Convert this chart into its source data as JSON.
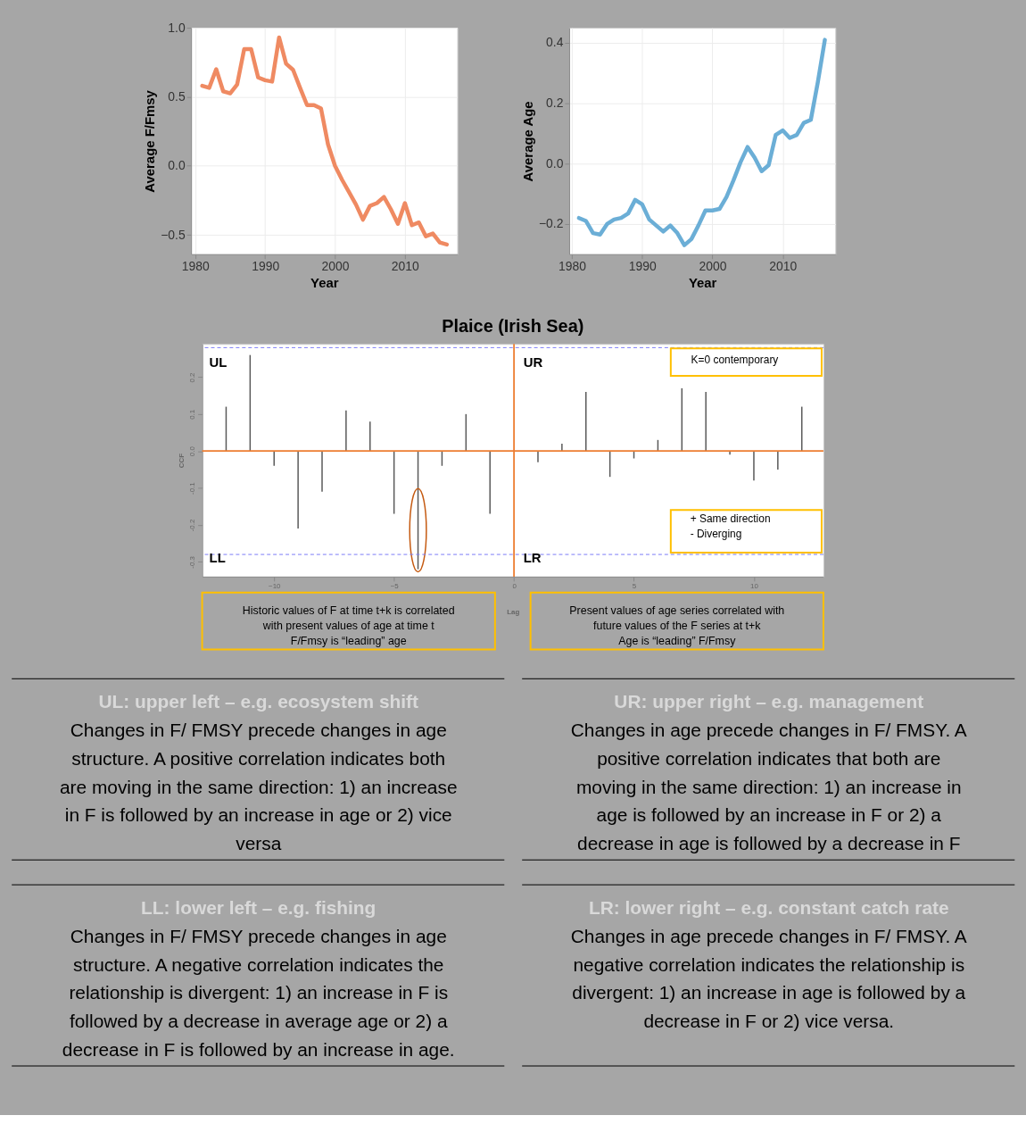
{
  "chart_data": [
    {
      "type": "line",
      "xlabel": "Year",
      "ylabel": "Average F/Fmsy",
      "grid": true,
      "line_style": "solid",
      "marker": "none",
      "xlim": [
        1979.4,
        2017.5
      ],
      "xticks": [
        1980,
        1990,
        2000,
        2010
      ],
      "ylim": [
        -0.64,
        1.0
      ],
      "yticks": [
        {
          "value": -0.5,
          "label": "−0.5"
        },
        {
          "value": 0,
          "label": "0.0"
        },
        0.5,
        {
          "value": 1.0,
          "label": "1.0"
        }
      ],
      "series": [
        {
          "color": "#ef8a62",
          "x": [
            1981,
            1982,
            1983,
            1984,
            1985,
            1986,
            1987,
            1988,
            1989,
            1990,
            1991,
            1992,
            1993,
            1994,
            1995,
            1996,
            1997,
            1998,
            1999,
            2000,
            2001,
            2002,
            2003,
            2004,
            2005,
            2006,
            2007,
            2008,
            2009,
            2010,
            2011,
            2012,
            2013,
            2014,
            2015,
            2016
          ],
          "values": [
            0.58,
            0.565,
            0.7,
            0.54,
            0.525,
            0.59,
            0.845,
            0.845,
            0.64,
            0.62,
            0.61,
            0.93,
            0.74,
            0.695,
            0.565,
            0.44,
            0.44,
            0.415,
            0.155,
            0.0,
            -0.1,
            -0.19,
            -0.28,
            -0.39,
            -0.29,
            -0.27,
            -0.225,
            -0.315,
            -0.42,
            -0.27,
            -0.43,
            -0.41,
            -0.51,
            -0.49,
            -0.555,
            -0.57
          ]
        }
      ]
    },
    {
      "type": "line",
      "xlabel": "Year",
      "ylabel": "Average Age",
      "grid": true,
      "line_style": "solid",
      "marker": "none",
      "xlim": [
        1979.6,
        2017.5
      ],
      "xticks": [
        1980,
        1990,
        2000,
        2010
      ],
      "ylim": [
        -0.3,
        0.45
      ],
      "yticks": [
        {
          "value": -0.2,
          "label": "−0.2"
        },
        {
          "value": 0,
          "label": "0.0"
        },
        0.2,
        0.4
      ],
      "series": [
        {
          "color": "#6baed6",
          "x": [
            1981,
            1982,
            1983,
            1984,
            1985,
            1986,
            1987,
            1988,
            1989,
            1990,
            1991,
            1992,
            1993,
            1994,
            1995,
            1996,
            1997,
            1998,
            1999,
            2000,
            2001,
            2002,
            2003,
            2004,
            2005,
            2006,
            2007,
            2008,
            2009,
            2010,
            2011,
            2012,
            2013,
            2014,
            2015,
            2016
          ],
          "values": [
            -0.18,
            -0.19,
            -0.23,
            -0.235,
            -0.2,
            -0.185,
            -0.18,
            -0.165,
            -0.12,
            -0.135,
            -0.185,
            -0.205,
            -0.225,
            -0.205,
            -0.23,
            -0.27,
            -0.25,
            -0.205,
            -0.155,
            -0.155,
            -0.15,
            -0.11,
            -0.055,
            0.005,
            0.055,
            0.02,
            -0.025,
            -0.005,
            0.095,
            0.11,
            0.085,
            0.095,
            0.135,
            0.145,
            0.27,
            0.41
          ]
        }
      ]
    },
    {
      "type": "bar",
      "title": "Plaice (Irish Sea)",
      "xlabel": "Lag",
      "ylabel": "CCF",
      "xlim": [
        -13,
        12.9
      ],
      "xticks": [
        -10,
        -5,
        0,
        5,
        10
      ],
      "ylim": [
        -0.34,
        0.29
      ],
      "yticks": [
        {
          "value": -0.3,
          "label": "-0.3"
        },
        {
          "value": -0.2,
          "label": "-0.2"
        },
        {
          "value": -0.1,
          "label": "-0.1"
        },
        {
          "value": 0,
          "label": "0.0"
        },
        0.1,
        0.2
      ],
      "series": [
        {
          "color": "#595959",
          "x": [
            -12,
            -11,
            -10,
            -9,
            -8,
            -7,
            -6,
            -5,
            -4,
            -3,
            -2,
            -1,
            0,
            1,
            2,
            3,
            4,
            5,
            6,
            7,
            8,
            9,
            10,
            11,
            12
          ],
          "values": [
            0.12,
            0.26,
            -0.04,
            -0.21,
            -0.11,
            0.11,
            0.08,
            -0.17,
            -0.32,
            -0.04,
            0.1,
            -0.17,
            null,
            -0.03,
            0.02,
            0.16,
            -0.07,
            -0.02,
            0.03,
            0.17,
            0.16,
            -0.01,
            -0.08,
            -0.05,
            0.12
          ]
        }
      ],
      "ref_lines": [
        {
          "axis": "y",
          "value": 0.28,
          "color": "#7b7bf7",
          "line_style": "dashed"
        },
        {
          "axis": "y",
          "value": -0.28,
          "color": "#7b7bf7",
          "line_style": "dashed"
        },
        {
          "axis": "y",
          "value": 0,
          "color": "#ed7d31",
          "line_style": "solid"
        },
        {
          "axis": "x",
          "value": 0,
          "color": "#ed7d31",
          "line_style": "solid"
        }
      ],
      "annotations": [
        "UL",
        "UR",
        "LL",
        "LR",
        "K=0 contemporary",
        "+ Same direction\n-   Diverging",
        "Historic values of F at time t+k is correlated\nwith present values of age at time t\nF/Fmsy is “leading” age",
        "Present values of age series correlated with\nfuture values of the F series at t+k\nAge is “leading” F/Fmsy"
      ]
    },
    {
      "type": "other",
      "annotations": [
        "UL: upper left – e.g. ecosystem shift",
        "Changes in F/ FMSY precede changes in age\nstructure. A positive correlation indicates both\nare moving in the same direction: 1) an increase\nin F is followed by an increase in age or 2) vice\nversa",
        "UR: upper right – e.g. management",
        "Changes in age precede changes in F/ FMSY. A\npositive correlation indicates that both are\nmoving in the same direction: 1) an increase in\nage is followed by an increase in F or 2) a\ndecrease in age is followed by a decrease in F",
        "LL: lower left – e.g. fishing",
        "Changes in F/ FMSY precede changes in age\nstructure. A negative correlation indicates the\nrelationship is divergent: 1) an increase in F is\nfollowed by a decrease in average age or 2) a\ndecrease in F is followed by an increase in age.",
        "LR: lower right – e.g. constant catch rate",
        "Changes in age precede changes in F/ FMSY. A\nnegative correlation indicates the relationship is\ndivergent: 1) an increase in age is followed by a\ndecrease in F or 2) vice versa."
      ]
    }
  ]
}
